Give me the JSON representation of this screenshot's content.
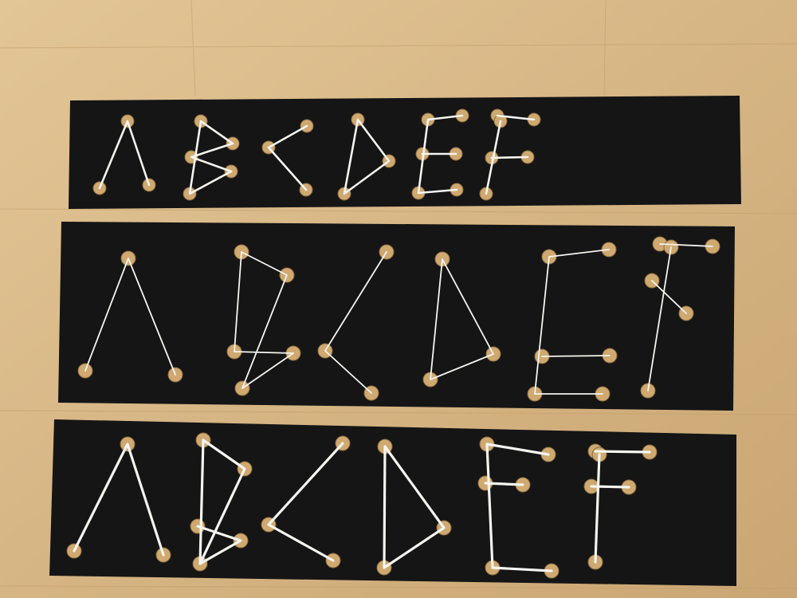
{
  "scene": {
    "description_alt": "",
    "colors": {
      "wood": "#d9b98a",
      "wood_dark": "#c9a676",
      "card": "#151515",
      "hole": "#cfa970",
      "hole_rim": "#8a6a3e",
      "string": "#f4f4f0"
    },
    "cards": [
      {
        "id": "card-small",
        "letters": [
          "A",
          "B",
          "C",
          "D",
          "E",
          "F"
        ]
      },
      {
        "id": "card-medium",
        "letters": [
          "A",
          "B",
          "C",
          "D",
          "E",
          "F"
        ]
      },
      {
        "id": "card-large",
        "letters": [
          "A",
          "B",
          "C",
          "D",
          "E",
          "F"
        ]
      }
    ]
  }
}
